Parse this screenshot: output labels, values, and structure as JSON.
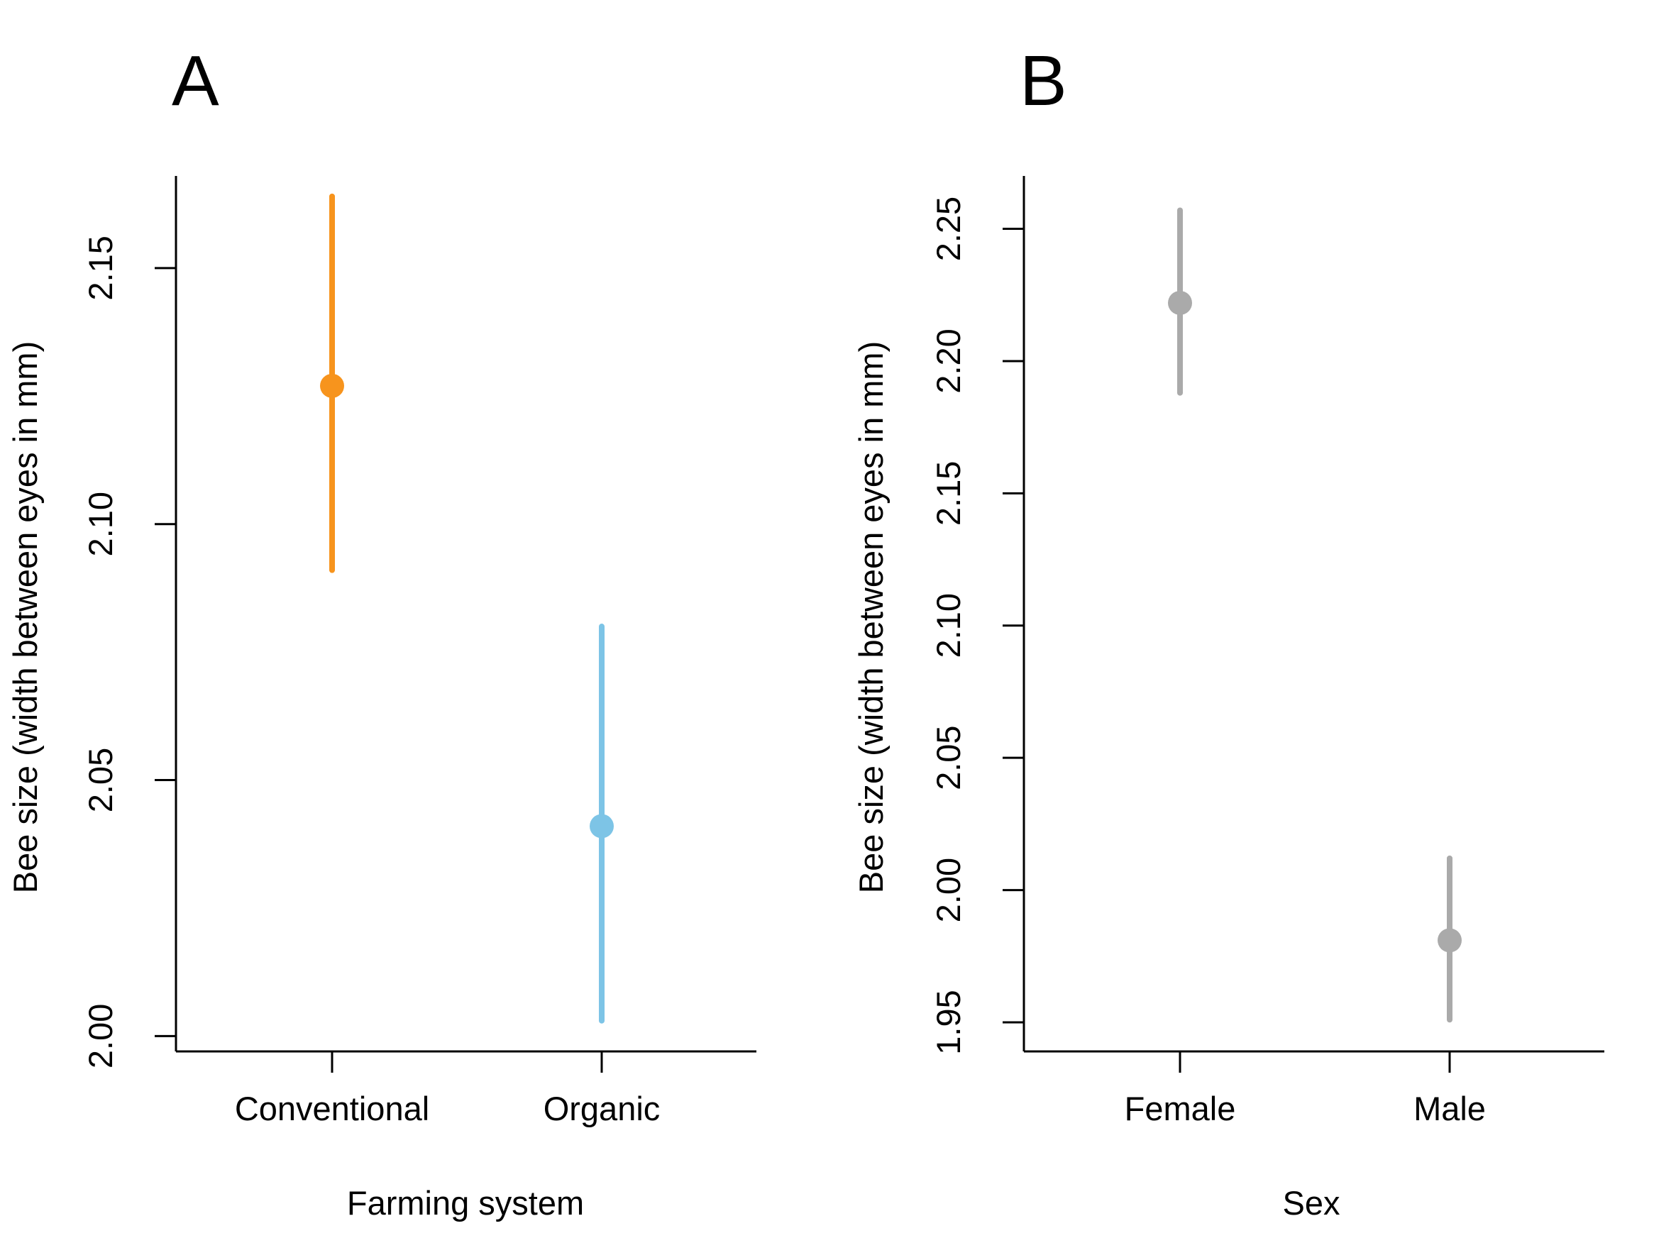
{
  "chart_data": [
    {
      "type": "scatter",
      "panel_label": "A",
      "xlabel": "Farming system",
      "ylabel": "Bee size (width between eyes in mm)",
      "categories": [
        "Conventional",
        "Organic"
      ],
      "points": [
        {
          "category": "Conventional",
          "estimate": 2.127,
          "lower": 2.091,
          "upper": 2.164,
          "color": "#F7941D"
        },
        {
          "category": "Organic",
          "estimate": 2.041,
          "lower": 2.003,
          "upper": 2.08,
          "color": "#7DC4E6"
        }
      ],
      "yticks": [
        "2.00",
        "2.05",
        "2.10",
        "2.15"
      ],
      "ylim": [
        1.997,
        2.168
      ],
      "grid": false
    },
    {
      "type": "scatter",
      "panel_label": "B",
      "xlabel": "Sex",
      "ylabel": "Bee size (width between eyes in mm)",
      "categories": [
        "Female",
        "Male"
      ],
      "points": [
        {
          "category": "Female",
          "estimate": 2.222,
          "lower": 2.188,
          "upper": 2.257,
          "color": "#AAAAAA"
        },
        {
          "category": "Male",
          "estimate": 1.981,
          "lower": 1.951,
          "upper": 2.012,
          "color": "#AAAAAA"
        }
      ],
      "yticks": [
        "1.95",
        "2.00",
        "2.05",
        "2.10",
        "2.15",
        "2.20",
        "2.25"
      ],
      "ylim": [
        1.939,
        2.27
      ],
      "grid": false
    }
  ]
}
